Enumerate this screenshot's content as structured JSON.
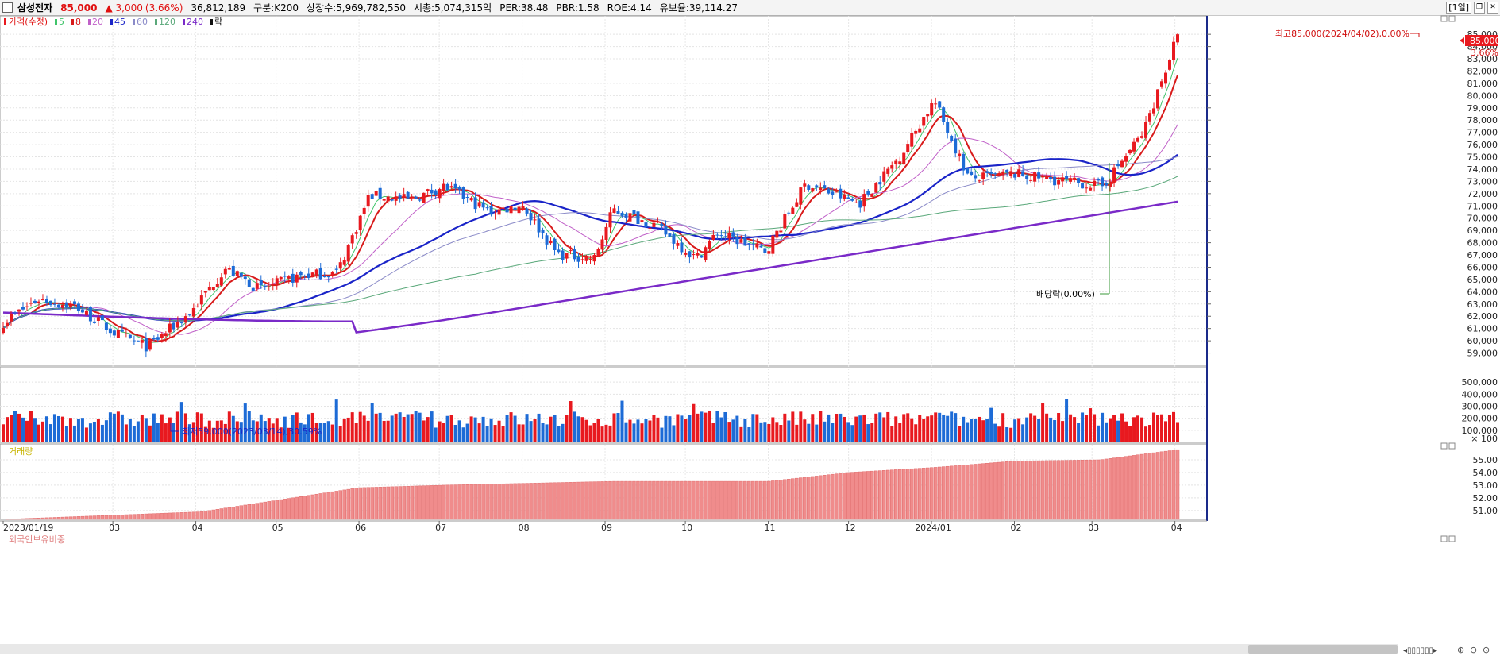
{
  "header": {
    "name": "삼성전자",
    "price": "85,000",
    "change": "▲ 3,000",
    "change_pct": "(3.66%)",
    "volume": "36,812,189",
    "market": "구분:K200",
    "shares": "상장수:5,969,782,550",
    "mcap": "시총:5,074,315억",
    "per": "PER:38.48",
    "pbr": "PBR:1.58",
    "roe": "ROE:4.14",
    "float": "유보율:39,114.27",
    "period": "[1일]"
  },
  "legend": {
    "price_label": "가격(수정)",
    "ma_labels": [
      "5",
      "8",
      "20",
      "45",
      "60",
      "120",
      "240"
    ],
    "ex_label": "락"
  },
  "panes": {
    "volume_label": "거래량",
    "foreign_label": "외국인보유비중"
  },
  "colors": {
    "up": "#e8191f",
    "down": "#1d6bd6",
    "ma5": "#3fc46a",
    "ma8": "#d81a1a",
    "ma20": "#c060c8",
    "ma45": "#1a24c8",
    "ma60": "#8a8ac8",
    "ma120": "#5aa87a",
    "ma240": "#7a2ac8",
    "foreign": "#f08c8c"
  },
  "annotations": {
    "high": "최고85,000(2024/04/02),0.00%",
    "low": "최저59,000(2023/03/14),30.59%",
    "dividend": "배당락(0.00%)",
    "current_price": "85,000",
    "current_pct": "3.66%"
  },
  "chart_data": {
    "type": "candlestick",
    "x_labels": [
      "2023/01/19",
      "03",
      "04",
      "05",
      "06",
      "07",
      "08",
      "09",
      "10",
      "11",
      "12",
      "2024/01",
      "02",
      "03",
      "04"
    ],
    "price_axis": {
      "ticks": [
        59000,
        60000,
        61000,
        62000,
        63000,
        64000,
        65000,
        66000,
        67000,
        68000,
        69000,
        70000,
        71000,
        72000,
        73000,
        74000,
        75000,
        76000,
        77000,
        78000,
        79000,
        80000,
        81000,
        82000,
        83000,
        84000,
        85000
      ],
      "range": [
        58000,
        86500
      ]
    },
    "close_series": [
      {
        "date": "2023/01/19",
        "close": 61500
      },
      {
        "date": "2023/02/01",
        "close": 63400
      },
      {
        "date": "2023/02/15",
        "close": 62800
      },
      {
        "date": "2023/03/02",
        "close": 60600
      },
      {
        "date": "2023/03/14",
        "close": 59500
      },
      {
        "date": "2023/03/30",
        "close": 62300
      },
      {
        "date": "2023/04/12",
        "close": 65900
      },
      {
        "date": "2023/04/25",
        "close": 64200
      },
      {
        "date": "2023/05/10",
        "close": 65300
      },
      {
        "date": "2023/05/24",
        "close": 65600
      },
      {
        "date": "2023/06/05",
        "close": 71900
      },
      {
        "date": "2023/06/20",
        "close": 71500
      },
      {
        "date": "2023/07/03",
        "close": 72600
      },
      {
        "date": "2023/07/20",
        "close": 70500
      },
      {
        "date": "2023/08/01",
        "close": 71100
      },
      {
        "date": "2023/08/14",
        "close": 67100
      },
      {
        "date": "2023/08/28",
        "close": 66700
      },
      {
        "date": "2023/09/04",
        "close": 70700
      },
      {
        "date": "2023/09/20",
        "close": 69400
      },
      {
        "date": "2023/10/05",
        "close": 66700
      },
      {
        "date": "2023/10/13",
        "close": 68800
      },
      {
        "date": "2023/10/31",
        "close": 67300
      },
      {
        "date": "2023/11/15",
        "close": 72800
      },
      {
        "date": "2023/12/05",
        "close": 71200
      },
      {
        "date": "2023/12/20",
        "close": 75000
      },
      {
        "date": "2024/01/02",
        "close": 79600
      },
      {
        "date": "2024/01/15",
        "close": 73200
      },
      {
        "date": "2024/02/01",
        "close": 73600
      },
      {
        "date": "2024/02/20",
        "close": 73000
      },
      {
        "date": "2024/03/05",
        "close": 72600
      },
      {
        "date": "2024/03/20",
        "close": 76900
      },
      {
        "date": "2024/03/29",
        "close": 82400
      },
      {
        "date": "2024/04/02",
        "close": 85000
      }
    ],
    "high": {
      "value": 85000,
      "date": "2024/04/02"
    },
    "low": {
      "value": 59000,
      "date": "2023/03/14"
    },
    "moving_averages": [
      "5",
      "8",
      "20",
      "45",
      "60",
      "120",
      "240"
    ],
    "volume_axis": {
      "ticks": [
        100000,
        200000,
        300000,
        400000,
        500000
      ],
      "unit": "× 100",
      "range": [
        0,
        600000
      ]
    },
    "foreign_ratio_axis": {
      "ticks": [
        51.0,
        52.0,
        53.0,
        54.0,
        55.0
      ],
      "range": [
        50.3,
        56.0
      ]
    },
    "foreign_ratio_series": [
      {
        "date": "2023/01/19",
        "value": 50.3
      },
      {
        "date": "2023/04/03",
        "value": 50.9
      },
      {
        "date": "2023/06/01",
        "value": 52.8
      },
      {
        "date": "2023/07/03",
        "value": 53.0
      },
      {
        "date": "2023/09/04",
        "value": 53.3
      },
      {
        "date": "2023/11/01",
        "value": 53.3
      },
      {
        "date": "2023/12/01",
        "value": 54.0
      },
      {
        "date": "2024/01/02",
        "value": 54.4
      },
      {
        "date": "2024/02/01",
        "value": 54.9
      },
      {
        "date": "2024/03/04",
        "value": 55.0
      },
      {
        "date": "2024/04/02",
        "value": 55.8
      }
    ]
  }
}
